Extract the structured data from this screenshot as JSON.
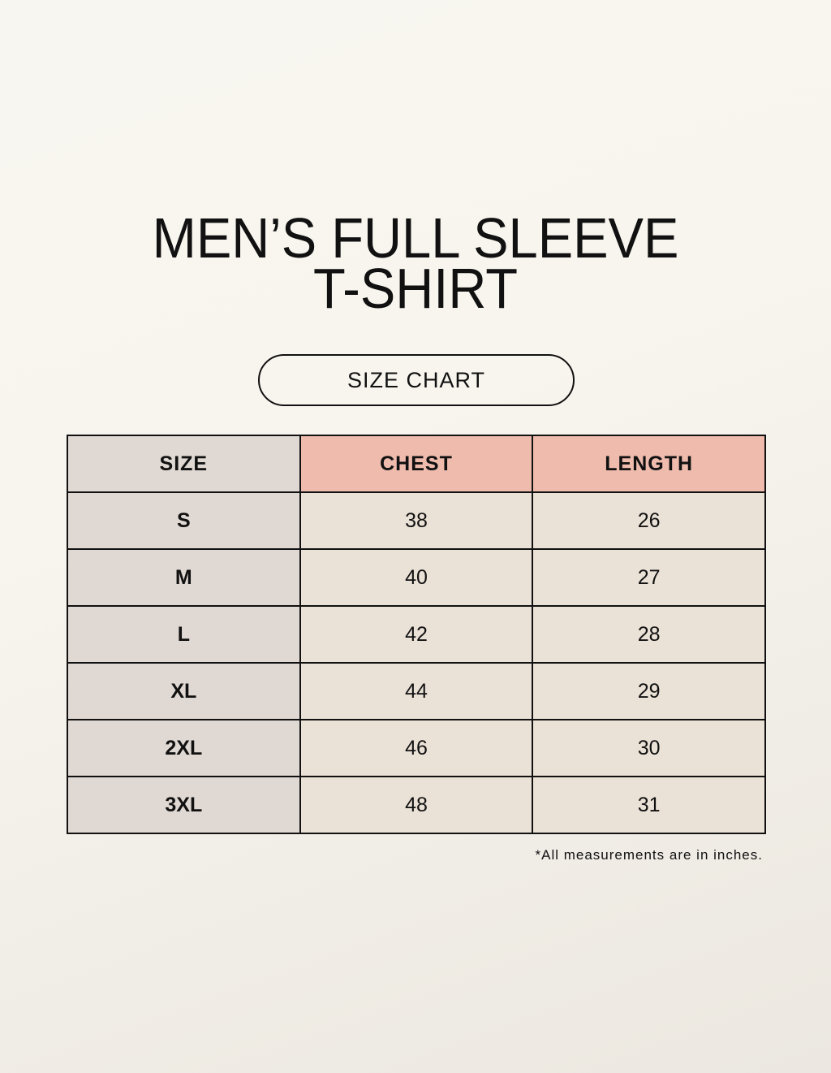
{
  "title": {
    "line1": "MEN’S FULL SLEEVE",
    "line2": "T-SHIRT"
  },
  "subtitle": "SIZE CHART",
  "table": {
    "headers": [
      "SIZE",
      "CHEST",
      "LENGTH"
    ],
    "rows": [
      [
        "S",
        "38",
        "26"
      ],
      [
        "M",
        "40",
        "27"
      ],
      [
        "L",
        "42",
        "28"
      ],
      [
        "XL",
        "44",
        "29"
      ],
      [
        "2XL",
        "46",
        "30"
      ],
      [
        "3XL",
        "48",
        "31"
      ]
    ]
  },
  "note": "*All measurements are in inches.",
  "colors": {
    "size_column": "#e0d8d2",
    "header_accent": "#eebbad",
    "value_cells": "#ebe2d7"
  }
}
